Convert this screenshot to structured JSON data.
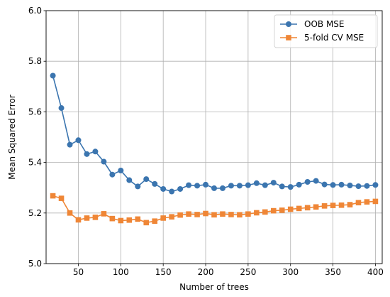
{
  "chart_data": {
    "type": "line",
    "title": "",
    "xlabel": "Number of trees",
    "ylabel": "Mean Squared Error",
    "xlim": [
      12,
      408
    ],
    "ylim": [
      5.0,
      6.0
    ],
    "xticks": [
      50,
      100,
      150,
      200,
      250,
      300,
      350,
      400
    ],
    "yticks": [
      5.0,
      5.2,
      5.4,
      5.6,
      5.8,
      6.0
    ],
    "ytick_labels": [
      "5.0",
      "5.2",
      "5.4",
      "5.6",
      "5.8",
      "6.0"
    ],
    "grid": true,
    "legend_position": "top-right",
    "x": [
      20,
      30,
      40,
      50,
      60,
      70,
      80,
      90,
      100,
      110,
      120,
      130,
      140,
      150,
      160,
      170,
      180,
      190,
      200,
      210,
      220,
      230,
      240,
      250,
      260,
      270,
      280,
      290,
      300,
      310,
      320,
      330,
      340,
      350,
      360,
      370,
      380,
      390,
      400
    ],
    "series": [
      {
        "name": "OOB MSE",
        "color": "#3b75af",
        "marker": "circle",
        "values": [
          5.743,
          5.615,
          5.47,
          5.488,
          5.433,
          5.443,
          5.403,
          5.352,
          5.368,
          5.33,
          5.305,
          5.334,
          5.315,
          5.295,
          5.285,
          5.295,
          5.31,
          5.308,
          5.312,
          5.298,
          5.298,
          5.308,
          5.308,
          5.31,
          5.318,
          5.31,
          5.32,
          5.305,
          5.303,
          5.312,
          5.323,
          5.327,
          5.313,
          5.311,
          5.312,
          5.309,
          5.306,
          5.307,
          5.311
        ]
      },
      {
        "name": "5-fold CV MSE",
        "color": "#ef8636",
        "marker": "square",
        "values": [
          5.268,
          5.258,
          5.2,
          5.173,
          5.18,
          5.183,
          5.197,
          5.178,
          5.17,
          5.172,
          5.176,
          5.162,
          5.168,
          5.18,
          5.185,
          5.192,
          5.196,
          5.194,
          5.198,
          5.193,
          5.196,
          5.194,
          5.193,
          5.196,
          5.201,
          5.204,
          5.209,
          5.211,
          5.215,
          5.218,
          5.221,
          5.224,
          5.228,
          5.23,
          5.231,
          5.233,
          5.241,
          5.244,
          5.246
        ]
      }
    ]
  }
}
